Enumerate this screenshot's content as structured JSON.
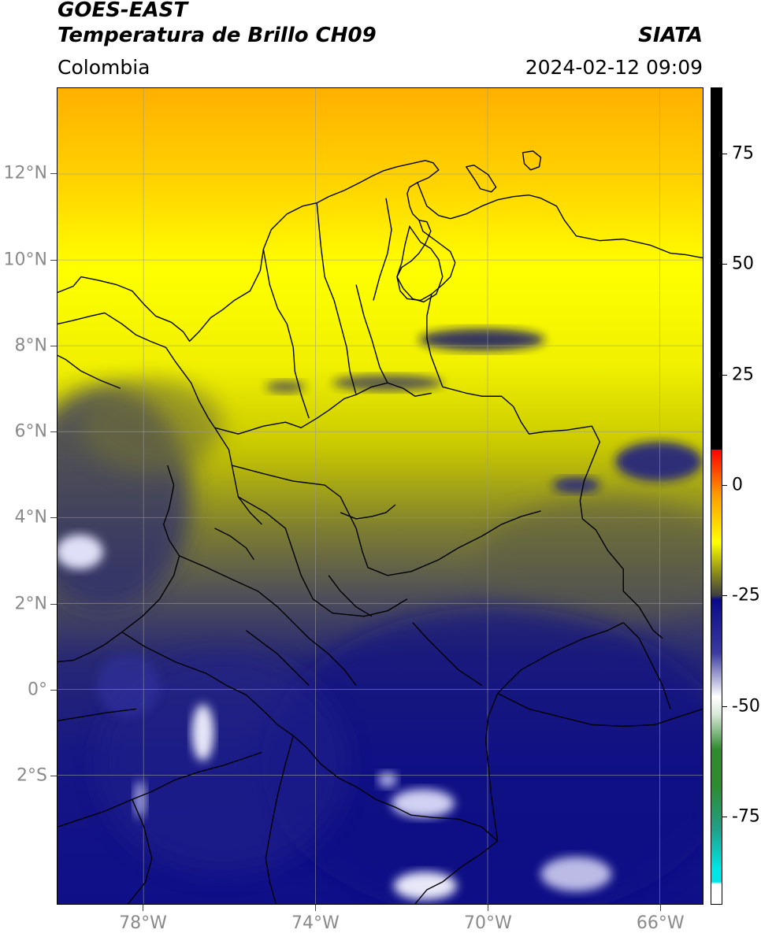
{
  "header": {
    "title_line1": "GOES-EAST",
    "title_line2": "Temperatura de Brillo CH09",
    "region": "Colombia",
    "source": "SIATA",
    "datetime": "2024-02-12 09:09"
  },
  "map": {
    "extent": {
      "lon_min": -80,
      "lon_max": -65,
      "lat_min": -5,
      "lat_max": 14
    },
    "lat_ticks": [
      {
        "value": 12,
        "label": "12°N"
      },
      {
        "value": 10,
        "label": "10°N"
      },
      {
        "value": 8,
        "label": "8°N"
      },
      {
        "value": 6,
        "label": "6°N"
      },
      {
        "value": 4,
        "label": "4°N"
      },
      {
        "value": 2,
        "label": "2°N"
      },
      {
        "value": 0,
        "label": "0°"
      },
      {
        "value": -2,
        "label": "2°S"
      }
    ],
    "lon_ticks": [
      {
        "value": -78,
        "label": "78°W"
      },
      {
        "value": -74,
        "label": "74°W"
      },
      {
        "value": -70,
        "label": "70°W"
      },
      {
        "value": -66,
        "label": "66°W"
      }
    ],
    "grid": true
  },
  "colorbar": {
    "min": -95,
    "max": 90,
    "ticks": [
      {
        "value": 75,
        "label": "75"
      },
      {
        "value": 50,
        "label": "50"
      },
      {
        "value": 25,
        "label": "25"
      },
      {
        "value": 0,
        "label": "0"
      },
      {
        "value": -25,
        "label": "-25"
      },
      {
        "value": -50,
        "label": "-50"
      },
      {
        "value": -75,
        "label": "-75"
      }
    ],
    "colors": {
      "black": "#000000",
      "red": "#ff0000",
      "orange": "#ff9900",
      "yellow": "#ffff00",
      "olive": "#8a8a1a",
      "navy": "#0a0a8a",
      "white": "#ffffff",
      "green": "#2e8b2e",
      "cyan": "#00e5e5"
    }
  }
}
